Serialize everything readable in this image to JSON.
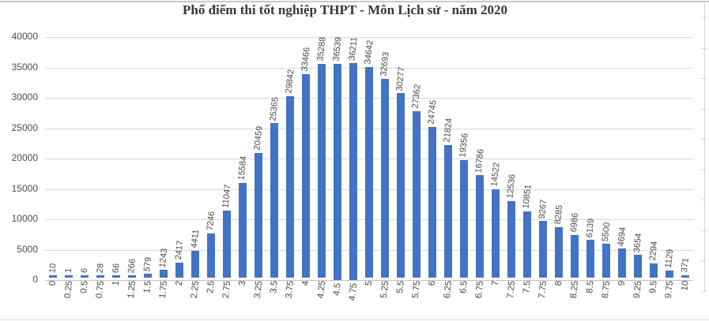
{
  "chart_data": {
    "type": "bar",
    "title": "Phổ điểm thi tốt nghiệp THPT - Môn Lịch sử - năm 2020",
    "categories": [
      "0",
      "0.25",
      "0.5",
      "0.75",
      "1",
      "1.25",
      "1.5",
      "1.75",
      "2",
      "2.25",
      "2.5",
      "2.75",
      "3",
      "3.25",
      "3.5",
      "3.75",
      "4",
      "4.25",
      "4.5",
      "4.75",
      "5",
      "5.25",
      "5.5",
      "5.75",
      "6",
      "6.25",
      "6.5",
      "6.75",
      "7",
      "7.25",
      "7.5",
      "7.75",
      "8",
      "8.25",
      "8.5",
      "8.75",
      "9",
      "9.25",
      "9.5",
      "9.75",
      "10"
    ],
    "values": [
      10,
      1,
      6,
      28,
      66,
      266,
      579,
      1243,
      2417,
      4411,
      7246,
      11047,
      15584,
      20459,
      25365,
      29842,
      33466,
      35288,
      36539,
      36211,
      34642,
      32693,
      30277,
      27362,
      24745,
      21824,
      19356,
      16786,
      14522,
      12536,
      10851,
      9267,
      8285,
      6986,
      6139,
      5500,
      4694,
      3654,
      2294,
      1129,
      371
    ],
    "xlabel": "",
    "ylabel": "",
    "ylim": [
      0,
      40000
    ],
    "yticks": [
      0,
      5000,
      10000,
      15000,
      20000,
      25000,
      30000,
      35000,
      40000
    ],
    "grid": true,
    "legend_position": "none",
    "bar_value_labels_rotated": true,
    "colors": {
      "bar": "#4472C4",
      "gridline": "#d9d9d9",
      "axis_line": "#bfbfbf",
      "value_label_text": "#474747",
      "tick_text": "#4d4d4d",
      "title_text": "#383838"
    }
  }
}
